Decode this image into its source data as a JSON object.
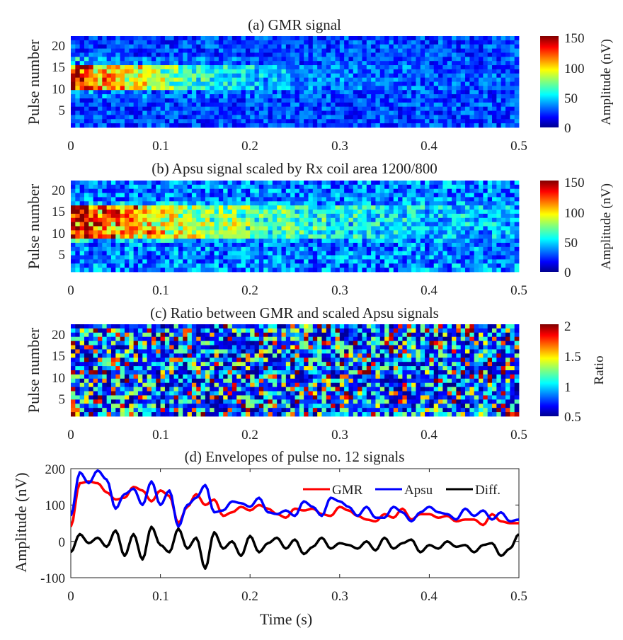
{
  "chart_data": [
    {
      "type": "heatmap",
      "title": "(a) GMR signal",
      "xlabel": "",
      "ylabel": "Pulse number",
      "xlim": [
        0,
        0.5
      ],
      "ylim": [
        1,
        22
      ],
      "xticks": [
        "0",
        "0.1",
        "0.2",
        "0.3",
        "0.4",
        "0.5"
      ],
      "yticks": [
        "5",
        "10",
        "15",
        "20"
      ],
      "colorbar": {
        "label": "Amplitude (nV)",
        "range": [
          0,
          150
        ],
        "ticks": [
          "0",
          "50",
          "100",
          "150"
        ],
        "colormap": "jet"
      },
      "description_values": {
        "peak_band_pulses": [
          10,
          15
        ],
        "peak_time_s": [
          0,
          0.05
        ],
        "peak_amplitude_nV": 150,
        "background_amplitude_nV": 30
      },
      "seed": 11
    },
    {
      "type": "heatmap",
      "title": "(b) Apsu signal scaled by Rx coil area 1200/800",
      "xlabel": "",
      "ylabel": "Pulse number",
      "xlim": [
        0,
        0.5
      ],
      "ylim": [
        1,
        22
      ],
      "xticks": [
        "0",
        "0.1",
        "0.2",
        "0.3",
        "0.4",
        "0.5"
      ],
      "yticks": [
        "5",
        "10",
        "15",
        "20"
      ],
      "colorbar": {
        "label": "Amplitude (nV)",
        "range": [
          0,
          150
        ],
        "ticks": [
          "0",
          "50",
          "100",
          "150"
        ],
        "colormap": "jet"
      },
      "description_values": {
        "peak_band_pulses": [
          9,
          16
        ],
        "peak_time_s": [
          0,
          0.12
        ],
        "peak_amplitude_nV": 150,
        "background_amplitude_nV": 40
      },
      "seed": 23
    },
    {
      "type": "heatmap",
      "title": "(c) Ratio between GMR and scaled Apsu signals",
      "xlabel": "",
      "ylabel": "Pulse number",
      "xlim": [
        0,
        0.5
      ],
      "ylim": [
        1,
        22
      ],
      "xticks": [
        "0",
        "0.1",
        "0.2",
        "0.3",
        "0.4",
        "0.5"
      ],
      "yticks": [
        "5",
        "10",
        "15",
        "20"
      ],
      "colorbar": {
        "label": "Ratio",
        "range": [
          0.5,
          2
        ],
        "ticks": [
          "0.5",
          "1",
          "1.5",
          "2"
        ],
        "colormap": "jet"
      },
      "description_values": {
        "typical_ratio": 0.9
      },
      "seed": 37
    },
    {
      "type": "line",
      "title": "(d) Envelopes of pulse no. 12 signals",
      "xlabel": "Time (s)",
      "ylabel": "Amplitude (nV)",
      "xlim": [
        0,
        0.5
      ],
      "ylim": [
        -100,
        200
      ],
      "xticks": [
        "0",
        "0.1",
        "0.2",
        "0.3",
        "0.4",
        "0.5"
      ],
      "yticks": [
        "-100",
        "0",
        "100",
        "200"
      ],
      "legend": {
        "placement": "top-right",
        "orientation": "horizontal"
      },
      "x": [
        0,
        0.01,
        0.02,
        0.03,
        0.04,
        0.05,
        0.06,
        0.07,
        0.08,
        0.09,
        0.1,
        0.11,
        0.12,
        0.13,
        0.14,
        0.15,
        0.16,
        0.17,
        0.18,
        0.19,
        0.2,
        0.21,
        0.22,
        0.23,
        0.24,
        0.25,
        0.26,
        0.27,
        0.28,
        0.29,
        0.3,
        0.31,
        0.32,
        0.33,
        0.34,
        0.35,
        0.36,
        0.37,
        0.38,
        0.39,
        0.4,
        0.41,
        0.42,
        0.43,
        0.44,
        0.45,
        0.46,
        0.47,
        0.48,
        0.49,
        0.5
      ],
      "series": [
        {
          "name": "GMR",
          "color": "#ff0000",
          "values": [
            40,
            160,
            165,
            160,
            135,
            115,
            120,
            150,
            140,
            110,
            140,
            125,
            50,
            95,
            130,
            100,
            115,
            70,
            80,
            95,
            85,
            100,
            90,
            75,
            65,
            90,
            85,
            90,
            75,
            70,
            95,
            85,
            70,
            60,
            55,
            75,
            65,
            90,
            60,
            75,
            75,
            65,
            70,
            55,
            60,
            60,
            45,
            75,
            55,
            50,
            50
          ]
        },
        {
          "name": "Apsu",
          "color": "#0000ff",
          "values": [
            70,
            190,
            160,
            195,
            170,
            90,
            130,
            145,
            100,
            165,
            100,
            140,
            40,
            100,
            120,
            155,
            80,
            85,
            110,
            105,
            95,
            120,
            80,
            75,
            85,
            70,
            110,
            95,
            70,
            120,
            110,
            95,
            70,
            95,
            65,
            65,
            95,
            80,
            55,
            80,
            95,
            80,
            75,
            60,
            90,
            70,
            85,
            60,
            80,
            55,
            60
          ]
        },
        {
          "name": "Diff.",
          "color": "#000000",
          "values": [
            -30,
            20,
            -5,
            10,
            -15,
            30,
            -40,
            20,
            -50,
            40,
            -10,
            -30,
            35,
            -20,
            10,
            -75,
            25,
            -20,
            0,
            -40,
            15,
            -30,
            -5,
            10,
            -20,
            5,
            -35,
            -15,
            10,
            -20,
            -5,
            -10,
            -20,
            0,
            -25,
            10,
            -20,
            -5,
            5,
            -30,
            -10,
            -20,
            0,
            -15,
            -10,
            -30,
            -10,
            -5,
            -40,
            -20,
            20
          ]
        }
      ]
    }
  ]
}
